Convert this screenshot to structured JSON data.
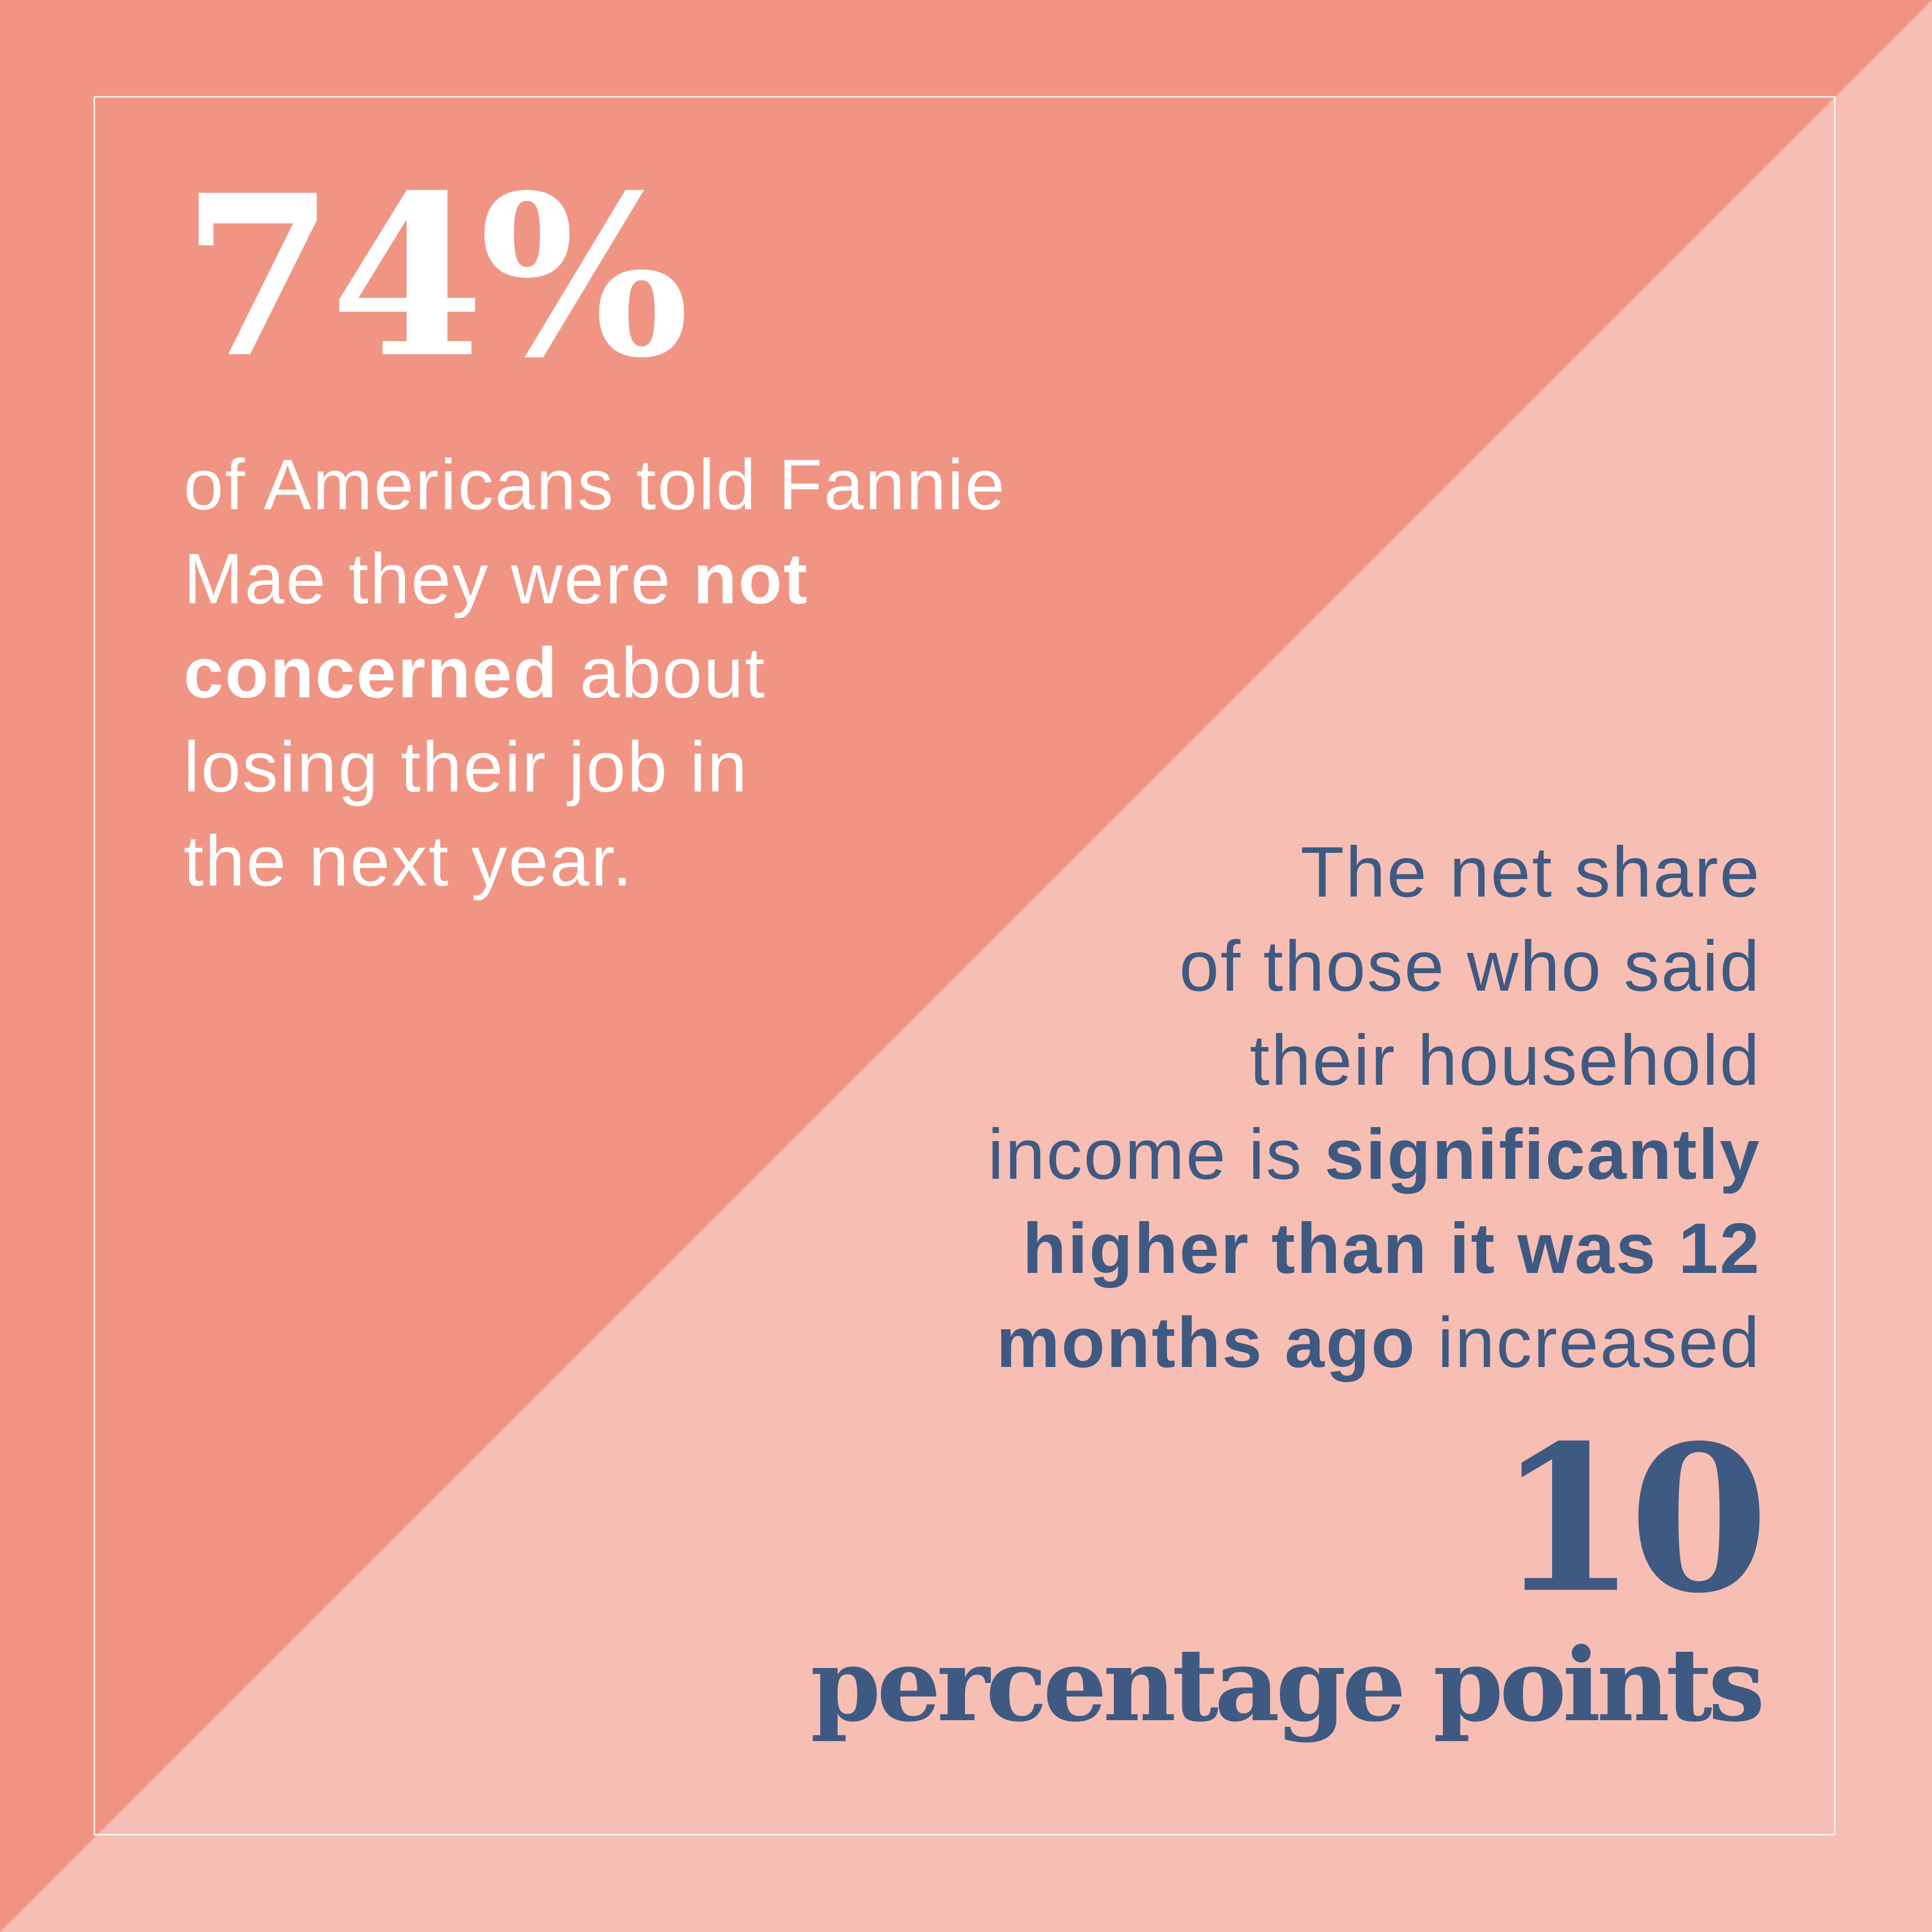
{
  "colors": {
    "upper_triangle": "#f09584",
    "lower_triangle": "#f7beb4",
    "frame_line": "#ffffff",
    "top_text": "#ffffff",
    "bottom_text": "#3e5a82"
  },
  "top_block": {
    "stat": "74%",
    "description": {
      "line1": "of Americans told Fannie",
      "line2_pre": "Mae they were ",
      "line2_bold": "not",
      "line3_bold": "concerned",
      "line3_post": " about",
      "line4": "losing their job in",
      "line5": "the next year."
    }
  },
  "bottom_block": {
    "description": {
      "line1": "The net share",
      "line2": "of those who said",
      "line3": "their household",
      "line4_pre": "income is ",
      "line4_bold": "significantly",
      "line5_bold": "higher than it was 12",
      "line6_bold": "months ago",
      "line6_post": " increased"
    },
    "stat_number": "10",
    "stat_label": "percentage points"
  }
}
